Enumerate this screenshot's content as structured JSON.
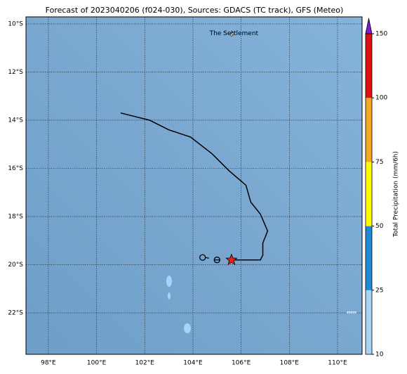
{
  "chart_data": {
    "type": "track_map",
    "title": "Forecast of 2023040206 (f024-030), Sources: GDACS (TC track), GFS (Meteo)",
    "xlim": [
      97.07,
      111.02
    ],
    "ylim": [
      -23.72,
      -9.71
    ],
    "xticks": [
      {
        "value": 98,
        "label": "98°E"
      },
      {
        "value": 100,
        "label": "100°E"
      },
      {
        "value": 102,
        "label": "102°E"
      },
      {
        "value": 104,
        "label": "104°E"
      },
      {
        "value": 106,
        "label": "106°E"
      },
      {
        "value": 108,
        "label": "108°E"
      },
      {
        "value": 110,
        "label": "110°E"
      }
    ],
    "yticks": [
      {
        "value": -10,
        "label": "10°S"
      },
      {
        "value": -12,
        "label": "12°S"
      },
      {
        "value": -14,
        "label": "14°S"
      },
      {
        "value": -16,
        "label": "16°S"
      },
      {
        "value": -18,
        "label": "18°S"
      },
      {
        "value": -20,
        "label": "20°S"
      },
      {
        "value": -22,
        "label": "22°S"
      }
    ],
    "grid": true,
    "track": {
      "color": "#000000",
      "x": [
        101.0,
        102.2,
        103.0,
        103.9,
        104.8,
        105.5,
        106.2,
        106.4,
        106.8,
        107.1,
        106.9,
        106.9,
        106.8,
        105.6
      ],
      "y": [
        -13.7,
        -14.0,
        -14.4,
        -14.7,
        -15.4,
        -16.1,
        -16.7,
        -17.4,
        -17.9,
        -18.6,
        -19.1,
        -19.6,
        -19.8,
        -19.8
      ]
    },
    "markers": [
      {
        "x": 105.6,
        "y": -19.8,
        "type": "star",
        "color": "#e8201a"
      },
      {
        "x": 105.0,
        "y": -19.8,
        "type": "circle-bar",
        "color": "#000000"
      },
      {
        "x": 104.4,
        "y": -19.7,
        "type": "circle-arrow",
        "color": "#000000"
      }
    ],
    "annotation": {
      "text": "The Settlement",
      "x": 105.7,
      "y": -10.4
    },
    "colorbar": {
      "label": "Total Precipitation (mm/6h)",
      "ticks": [
        10,
        25,
        50,
        75,
        100,
        150
      ],
      "colors": [
        "#a9d3f5",
        "#1f8ad6",
        "#ffff00",
        "#f5a623",
        "#e01010"
      ],
      "extend_color": "#7a1fd0"
    }
  }
}
